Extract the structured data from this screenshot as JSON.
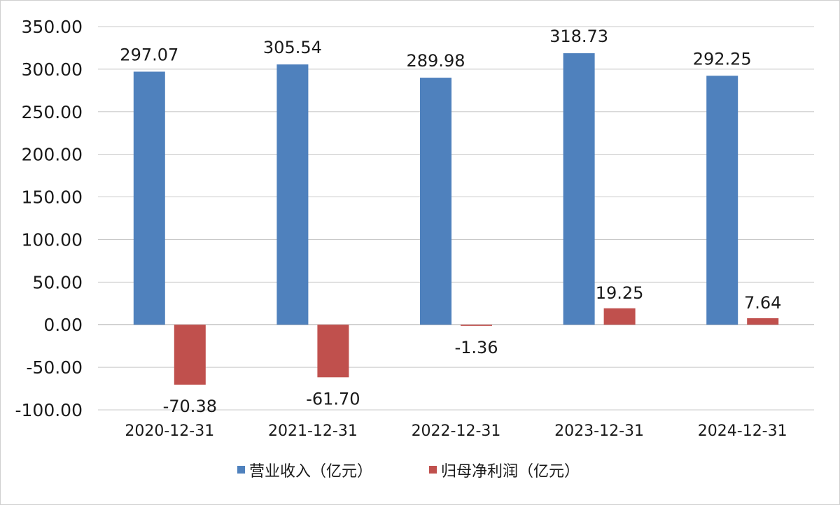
{
  "chart_data": {
    "type": "bar",
    "categories": [
      "2020-12-31",
      "2021-12-31",
      "2022-12-31",
      "2023-12-31",
      "2024-12-31"
    ],
    "series": [
      {
        "name": "营业收入（亿元）",
        "color": "#4f81bd",
        "values": [
          297.07,
          305.54,
          289.98,
          318.73,
          292.25
        ],
        "labels": [
          "297.07",
          "305.54",
          "289.98",
          "318.73",
          "292.25"
        ]
      },
      {
        "name": "归母净利润（亿元）",
        "color": "#c0504d",
        "values": [
          -70.38,
          -61.7,
          -1.36,
          19.25,
          7.64
        ],
        "labels": [
          "-70.38",
          "-61.70",
          "-1.36",
          "19.25",
          "7.64"
        ]
      }
    ],
    "ylim": [
      -100,
      350
    ],
    "yticks": [
      350,
      300,
      250,
      200,
      150,
      100,
      50,
      0,
      -50,
      -100
    ],
    "ytick_labels": [
      "350.00",
      "300.00",
      "250.00",
      "200.00",
      "150.00",
      "100.00",
      "50.00",
      "0.00",
      "-50.00",
      "-100.00"
    ],
    "grid": true,
    "legend": "bottom"
  }
}
